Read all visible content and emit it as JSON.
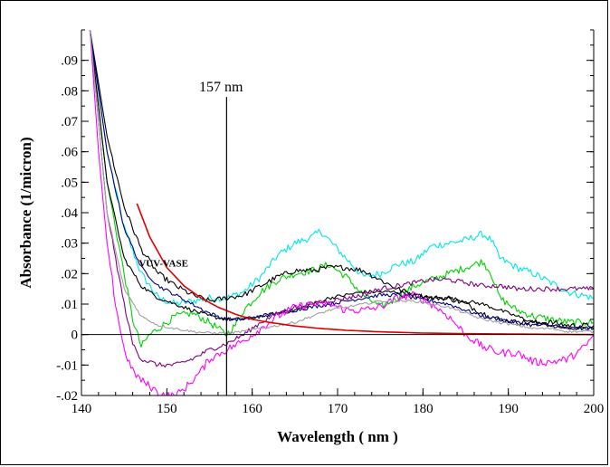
{
  "chart_data": {
    "type": "line",
    "title": "",
    "xlabel": "Wavelength ( nm )",
    "ylabel": "Absorbance (1/micron)",
    "xlim": [
      140,
      200
    ],
    "ylim": [
      -0.02,
      0.1
    ],
    "x_ticks": [
      140,
      150,
      160,
      170,
      180,
      190,
      200
    ],
    "x_tick_labels": [
      "140",
      "150",
      "160",
      "170",
      "180",
      "190",
      "200"
    ],
    "y_ticks": [
      -0.02,
      -0.01,
      0,
      0.01,
      0.02,
      0.03,
      0.04,
      0.05,
      0.06,
      0.07,
      0.08,
      0.09
    ],
    "y_tick_labels": [
      "-.02",
      "-.01",
      "0",
      ".01",
      ".02",
      ".03",
      ".04",
      ".05",
      ".06",
      ".07",
      ".08",
      ".09"
    ],
    "grid": false,
    "annotations": [
      {
        "text": "157 nm",
        "x": 157,
        "y": 0.083,
        "kind": "vertical-line",
        "line_x": 157,
        "line_from": -0.02,
        "line_to": 0.078
      },
      {
        "text": "VUV-VASE",
        "x": 146.5,
        "y": 0.0235
      }
    ],
    "series": [
      {
        "color": "#00e5e5",
        "noise": 0.0012,
        "x": [
          141,
          143,
          145,
          147,
          149,
          151,
          153,
          155,
          157,
          159,
          161,
          163,
          165,
          167,
          168,
          169,
          171,
          173,
          175,
          177,
          179,
          181,
          183,
          185,
          187,
          188,
          189,
          191,
          193,
          195,
          197,
          200
        ],
        "y": [
          0.1,
          0.06,
          0.035,
          0.02,
          0.012,
          0.01,
          0.011,
          0.012,
          0.012,
          0.014,
          0.019,
          0.026,
          0.03,
          0.032,
          0.034,
          0.031,
          0.025,
          0.019,
          0.02,
          0.023,
          0.024,
          0.029,
          0.03,
          0.031,
          0.033,
          0.031,
          0.025,
          0.022,
          0.02,
          0.017,
          0.014,
          0.012
        ]
      },
      {
        "color": "#00d000",
        "noise": 0.0012,
        "x": [
          141,
          143,
          145,
          146,
          147,
          148,
          149,
          151,
          153,
          155,
          157,
          158,
          159,
          161,
          163,
          165,
          167,
          169,
          171,
          173,
          175,
          177,
          179,
          181,
          183,
          185,
          187,
          188,
          189,
          191,
          193,
          195,
          197,
          200
        ],
        "y": [
          0.1,
          0.05,
          0.02,
          0.005,
          -0.004,
          0.0,
          0.002,
          0.006,
          0.007,
          0.004,
          0.0,
          0.003,
          0.008,
          0.014,
          0.018,
          0.02,
          0.021,
          0.023,
          0.019,
          0.013,
          0.009,
          0.012,
          0.016,
          0.018,
          0.02,
          0.022,
          0.024,
          0.02,
          0.012,
          0.008,
          0.006,
          0.005,
          0.004,
          0.004
        ]
      },
      {
        "color": "#000000",
        "noise": 0.0009,
        "x": [
          141,
          143,
          145,
          147,
          149,
          151,
          153,
          155,
          157,
          159,
          161,
          163,
          165,
          167,
          169,
          171,
          173,
          175,
          177,
          179,
          181,
          183,
          185,
          187,
          189,
          191,
          193,
          195,
          197,
          200
        ],
        "y": [
          0.1,
          0.065,
          0.042,
          0.028,
          0.02,
          0.016,
          0.013,
          0.011,
          0.012,
          0.013,
          0.016,
          0.019,
          0.021,
          0.021,
          0.022,
          0.022,
          0.021,
          0.018,
          0.015,
          0.013,
          0.012,
          0.012,
          0.01,
          0.007,
          0.005,
          0.004,
          0.004,
          0.004,
          0.003,
          0.003
        ]
      },
      {
        "color": "#000000",
        "noise": 0.0006,
        "x": [
          141,
          143,
          145,
          147,
          149,
          151,
          153,
          155,
          157,
          159,
          161,
          163,
          165,
          167,
          169,
          171,
          173,
          175,
          177,
          179,
          181,
          183,
          185,
          187,
          189,
          191,
          193,
          195,
          197,
          200
        ],
        "y": [
          0.1,
          0.05,
          0.025,
          0.016,
          0.012,
          0.01,
          0.008,
          0.006,
          0.005,
          0.005,
          0.006,
          0.007,
          0.008,
          0.01,
          0.012,
          0.013,
          0.014,
          0.014,
          0.014,
          0.013,
          0.012,
          0.012,
          0.011,
          0.01,
          0.008,
          0.006,
          0.004,
          0.003,
          0.002,
          0.002
        ]
      },
      {
        "color": "#000080",
        "noise": 0.0006,
        "x": [
          141,
          143,
          145,
          147,
          149,
          151,
          153,
          155,
          157,
          159,
          161,
          163,
          165,
          167,
          169,
          171,
          173,
          175,
          177,
          179,
          181,
          183,
          185,
          187,
          189,
          191,
          193,
          195,
          197,
          200
        ],
        "y": [
          0.1,
          0.06,
          0.035,
          0.022,
          0.016,
          0.013,
          0.01,
          0.007,
          0.005,
          0.005,
          0.006,
          0.007,
          0.008,
          0.009,
          0.01,
          0.011,
          0.012,
          0.013,
          0.013,
          0.012,
          0.011,
          0.01,
          0.008,
          0.006,
          0.005,
          0.004,
          0.003,
          0.003,
          0.002,
          0.002
        ]
      },
      {
        "color": "#800080",
        "noise": 0.0008,
        "x": [
          141,
          143,
          145,
          146,
          147,
          149,
          151,
          153,
          155,
          157,
          159,
          161,
          163,
          165,
          167,
          169,
          171,
          173,
          175,
          177,
          179,
          181,
          183,
          185,
          187,
          189,
          191,
          193,
          195,
          197,
          200
        ],
        "y": [
          0.1,
          0.04,
          0.01,
          -0.003,
          -0.008,
          -0.01,
          -0.01,
          -0.008,
          -0.005,
          -0.003,
          0.0,
          0.004,
          0.007,
          0.009,
          0.01,
          0.011,
          0.012,
          0.013,
          0.015,
          0.016,
          0.017,
          0.018,
          0.018,
          0.017,
          0.016,
          0.016,
          0.015,
          0.015,
          0.015,
          0.015,
          0.015
        ]
      },
      {
        "color": "#ff00ff",
        "noise": 0.0013,
        "x": [
          141,
          142,
          143,
          144,
          145,
          146,
          147,
          148,
          149,
          150,
          151,
          152,
          153,
          154,
          155,
          157,
          159,
          161,
          163,
          165,
          167,
          169,
          171,
          173,
          175,
          177,
          179,
          181,
          183,
          185,
          187,
          189,
          191,
          193,
          195,
          197,
          199,
          200
        ],
        "y": [
          0.1,
          0.06,
          0.03,
          0.01,
          -0.005,
          -0.012,
          -0.015,
          -0.017,
          -0.019,
          -0.02,
          -0.02,
          -0.018,
          -0.015,
          -0.012,
          -0.008,
          -0.005,
          -0.002,
          0.002,
          0.006,
          0.009,
          0.01,
          0.01,
          0.008,
          0.008,
          0.009,
          0.012,
          0.013,
          0.01,
          0.006,
          0.0,
          -0.004,
          -0.006,
          -0.006,
          -0.009,
          -0.009,
          -0.008,
          -0.004,
          0.0
        ]
      },
      {
        "color": "#a0a0a0",
        "noise": 0.0004,
        "x": [
          141,
          143,
          145,
          147,
          149,
          151,
          153,
          155,
          157,
          159,
          161,
          163,
          165,
          167,
          169,
          171,
          173,
          175,
          177,
          179,
          181,
          183,
          185,
          187,
          189,
          191,
          193,
          195,
          197,
          200
        ],
        "y": [
          0.1,
          0.04,
          0.015,
          0.006,
          0.003,
          0.002,
          0.001,
          0.0005,
          0.0005,
          0.001,
          0.002,
          0.003,
          0.004,
          0.006,
          0.008,
          0.009,
          0.01,
          0.011,
          0.011,
          0.011,
          0.01,
          0.009,
          0.007,
          0.005,
          0.004,
          0.003,
          0.002,
          0.002,
          0.001,
          0.001
        ]
      },
      {
        "color": "#e00000",
        "noise": 0,
        "x": [
          146.5,
          148,
          150,
          152,
          154,
          156,
          158,
          160,
          162,
          165,
          168,
          171,
          175,
          180,
          185,
          190,
          195,
          200
        ],
        "y": [
          0.043,
          0.032,
          0.022,
          0.016,
          0.012,
          0.009,
          0.0067,
          0.005,
          0.004,
          0.0028,
          0.002,
          0.0014,
          0.0009,
          0.0005,
          0.0003,
          0.0002,
          0.0001,
          0.0
        ]
      }
    ]
  }
}
